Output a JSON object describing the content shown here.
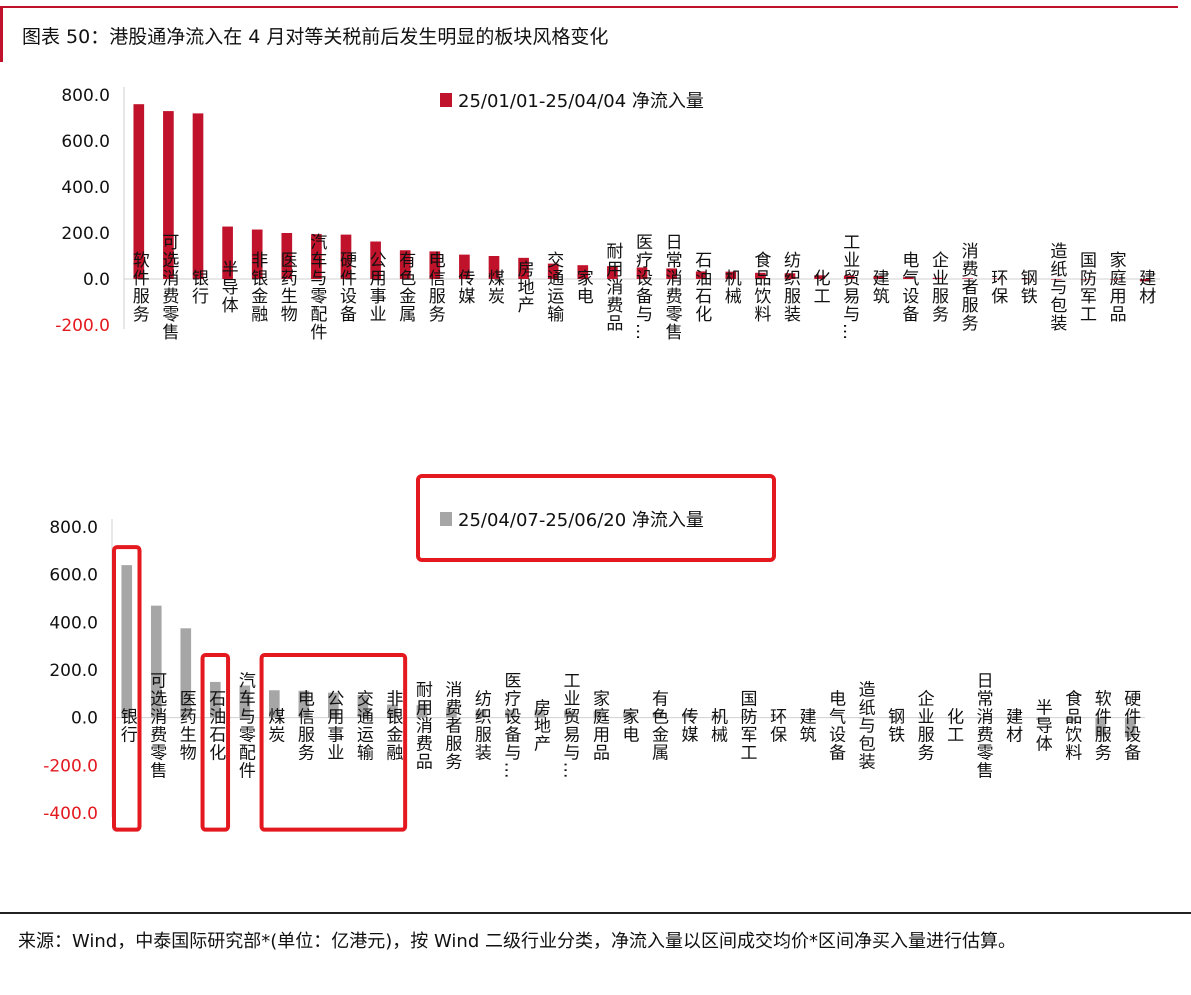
{
  "figure": {
    "title": "图表 50：港股通净流入在 4 月对等关税前后发生明显的板块风格变化",
    "source": "来源：Wind，中泰国际研究部*(单位：亿港元)，按 Wind 二级行业分类，净流入量以区间成交均价*区间净买入量进行估算。"
  },
  "colors": {
    "accent": "#c0122a",
    "series1": "#c0122a",
    "series2": "#a6a6a6",
    "highlight": "#e3191f",
    "negative_tick": "#e3191f"
  },
  "chart_data": [
    {
      "type": "bar",
      "series": [
        {
          "name": "25/01/01-25/04/04 净流入量",
          "values": [
            760,
            730,
            720,
            228,
            215,
            200,
            195,
            193,
            163,
            125,
            120,
            106,
            100,
            92,
            67,
            60,
            56,
            50,
            46,
            33,
            32,
            27,
            25,
            16,
            15,
            12,
            8,
            5,
            3,
            2,
            1,
            0,
            -1,
            -3,
            -10
          ]
        }
      ],
      "categories": [
        "软件服务",
        "可选消费零售",
        "银行",
        "半导体",
        "非银金融",
        "医药生物",
        "汽车与零配件",
        "硬件设备",
        "公用事业",
        "有色金属",
        "电信服务",
        "传媒",
        "煤炭",
        "房地产",
        "交通运输",
        "家电",
        "耐用消费品",
        "医疗设备与…",
        "日常消费零售",
        "石油石化",
        "机械",
        "食品饮料",
        "纺织服装",
        "化工",
        "工业贸易与…",
        "建筑",
        "电气设备",
        "企业服务",
        "消费者服务",
        "环保",
        "钢铁",
        "造纸与包装",
        "国防军工",
        "家庭用品",
        "建材"
      ],
      "yticks": [
        "800.0",
        "600.0",
        "400.0",
        "200.0",
        "0.0",
        "-200.0"
      ],
      "ylim": [
        -200,
        800
      ],
      "legend_position": "top-right"
    },
    {
      "type": "bar",
      "series": [
        {
          "name": "25/04/07-25/06/20 净流入量",
          "values": [
            640,
            470,
            375,
            150,
            135,
            115,
            113,
            105,
            95,
            55,
            52,
            37,
            34,
            33,
            33,
            30,
            27,
            25,
            23,
            15,
            12,
            8,
            5,
            3,
            2,
            0,
            -1,
            -2,
            -3,
            -3,
            -5,
            -10,
            -15,
            -78,
            -82
          ]
        }
      ],
      "categories": [
        "银行",
        "可选消费零售",
        "医药生物",
        "石油石化",
        "汽车与零配件",
        "煤炭",
        "电信服务",
        "公用事业",
        "交通运输",
        "非银金融",
        "耐用消费品",
        "消费者服务",
        "纺织服装",
        "医疗设备与…",
        "房地产",
        "工业贸易与…",
        "家庭用品",
        "家电",
        "有色金属",
        "传媒",
        "机械",
        "国防军工",
        "环保",
        "建筑",
        "电气设备",
        "造纸与包装",
        "钢铁",
        "企业服务",
        "化工",
        "日常消费零售",
        "建材",
        "半导体",
        "食品饮料",
        "软件服务",
        "硬件设备"
      ],
      "yticks": [
        "800.0",
        "600.0",
        "400.0",
        "200.0",
        "0.0",
        "-200.0",
        "-400.0"
      ],
      "ylim": [
        -400,
        800
      ],
      "legend_position": "top-center",
      "highlight_groups": [
        [
          "银行"
        ],
        [
          "石油石化"
        ],
        [
          "煤炭",
          "电信服务",
          "公用事业",
          "交通运输",
          "非银金融"
        ]
      ],
      "highlight_legend": true
    }
  ]
}
